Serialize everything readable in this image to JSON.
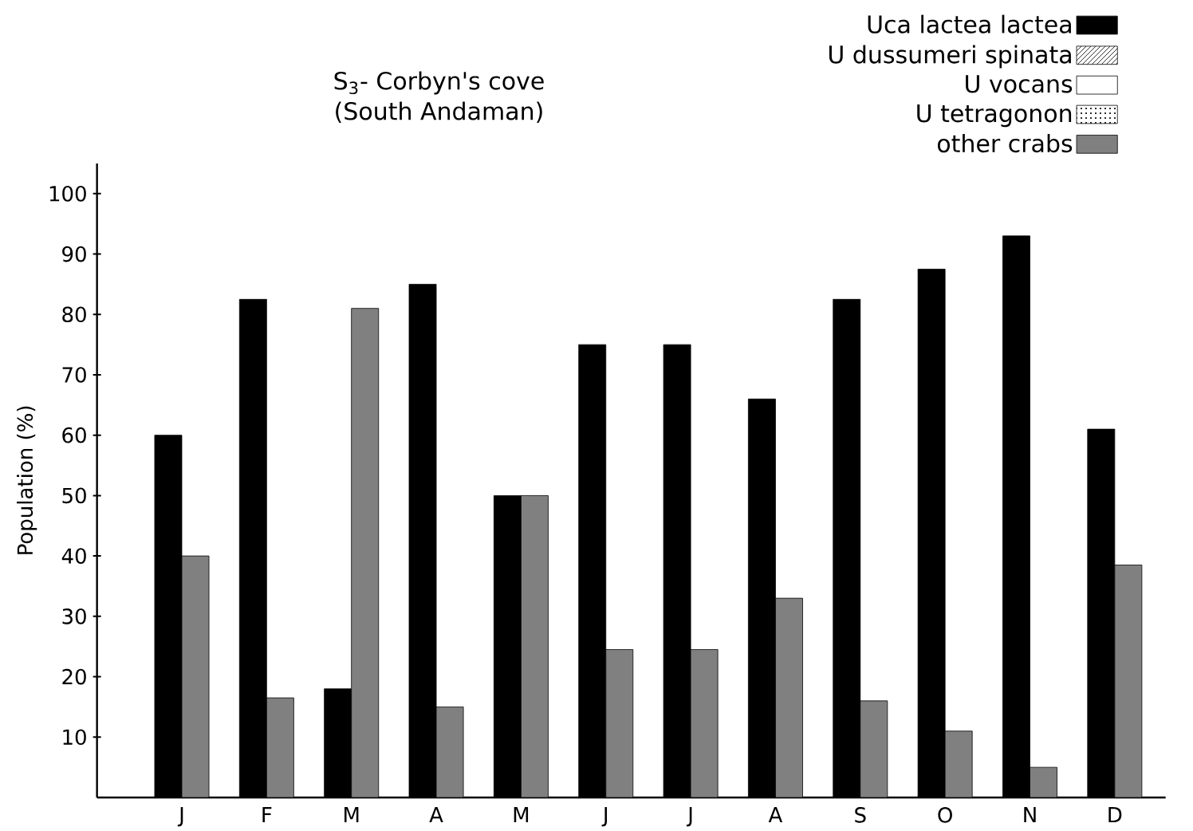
{
  "chart_data": {
    "type": "bar",
    "title": "S$_{3}$- Corbyn's cove",
    "subtitle": "(South Andaman)",
    "ylabel": "Population (%)",
    "categories": [
      "J",
      "F",
      "M",
      "A",
      "M",
      "J",
      "J",
      "A",
      "S",
      "O",
      "N",
      "D"
    ],
    "series": [
      {
        "name": "Uca lactea lactea",
        "color": "#000000",
        "values": [
          60,
          82.5,
          18,
          85,
          50,
          75,
          75,
          66,
          82.5,
          87.5,
          93,
          61
        ]
      },
      {
        "name": "U dussumeri spinata",
        "color": "#000000",
        "values": [
          null,
          null,
          null,
          null,
          null,
          null,
          null,
          null,
          null,
          null,
          null,
          null
        ]
      },
      {
        "name": "U vocans",
        "color": "#000000",
        "values": [
          null,
          null,
          null,
          null,
          null,
          null,
          null,
          null,
          null,
          null,
          null,
          null
        ]
      },
      {
        "name": "U tetragonon",
        "color": "#000000",
        "values": [
          null,
          null,
          null,
          null,
          null,
          null,
          null,
          null,
          null,
          null,
          null,
          null
        ]
      },
      {
        "name": "other crabs",
        "color": "#808080",
        "values": [
          40,
          16.5,
          81,
          15,
          50,
          24.5,
          24.5,
          33,
          16,
          11,
          5,
          38.5
        ]
      }
    ],
    "ylim": [
      0,
      105
    ],
    "yticks": [
      10,
      20,
      30,
      40,
      50,
      60,
      70,
      80,
      90,
      100
    ],
    "legend": "top right"
  }
}
